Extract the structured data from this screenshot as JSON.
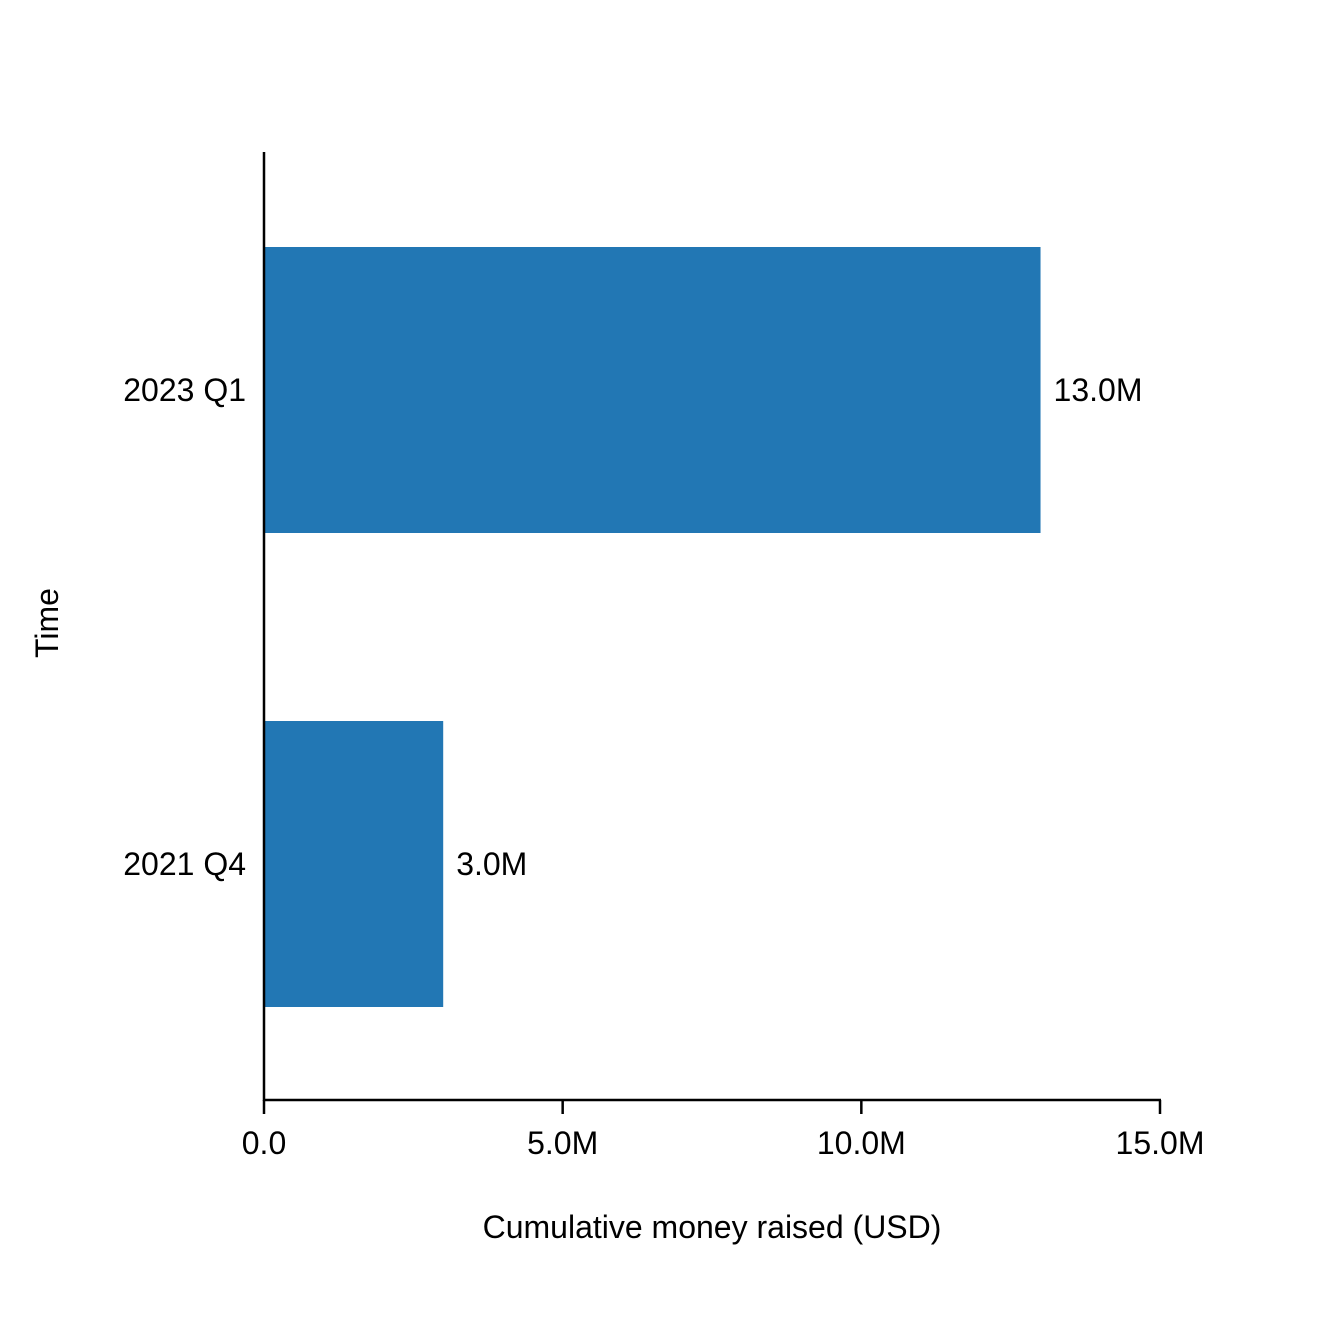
{
  "chart_data": {
    "type": "bar",
    "orientation": "horizontal",
    "categories": [
      "2021 Q4",
      "2023 Q1"
    ],
    "values": [
      3000000,
      13000000
    ],
    "data_labels": [
      "3.0M",
      "13.0M"
    ],
    "title": "",
    "xlabel": "Cumulative money raised (USD)",
    "ylabel": "Time",
    "xlim": [
      0,
      15000000
    ],
    "x_ticks": [
      0,
      5000000,
      10000000,
      15000000
    ],
    "x_tick_labels": [
      "0.0",
      "5.0M",
      "10.0M",
      "15.0M"
    ],
    "grid": false,
    "legend": "none",
    "bar_color": "#2277b4",
    "axis_color": "#000000"
  }
}
